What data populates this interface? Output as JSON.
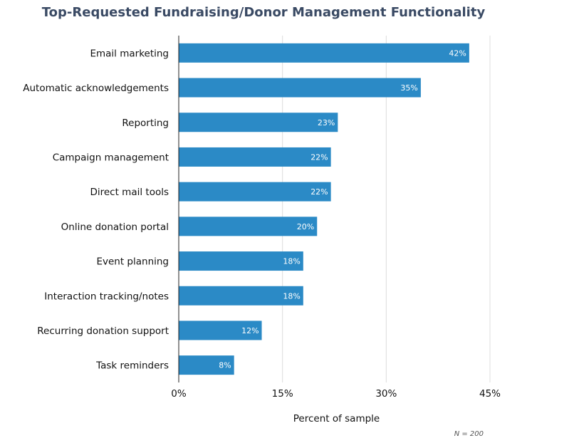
{
  "chart_data": {
    "type": "bar",
    "orientation": "horizontal",
    "title": "Top-Requested Fundraising/Donor Management Functionality",
    "xlabel": "Percent of sample",
    "ylabel": "",
    "xlim": [
      0,
      45
    ],
    "x_ticks": [
      "0%",
      "15%",
      "30%",
      "45%"
    ],
    "x_tick_values": [
      0,
      15,
      30,
      45
    ],
    "grid": true,
    "categories": [
      "Email marketing",
      "Automatic acknowledgements",
      "Reporting",
      "Campaign management",
      "Direct mail tools",
      "Online donation portal",
      "Event planning",
      "Interaction tracking/notes",
      "Recurring donation support",
      "Task reminders"
    ],
    "values": [
      42,
      35,
      23,
      22,
      22,
      20,
      18,
      18,
      12,
      8
    ],
    "data_labels": [
      "42%",
      "35%",
      "23%",
      "22%",
      "22%",
      "20%",
      "18%",
      "18%",
      "12%",
      "8%"
    ],
    "bar_color": "#2b8ac6",
    "note": "N = 200"
  }
}
